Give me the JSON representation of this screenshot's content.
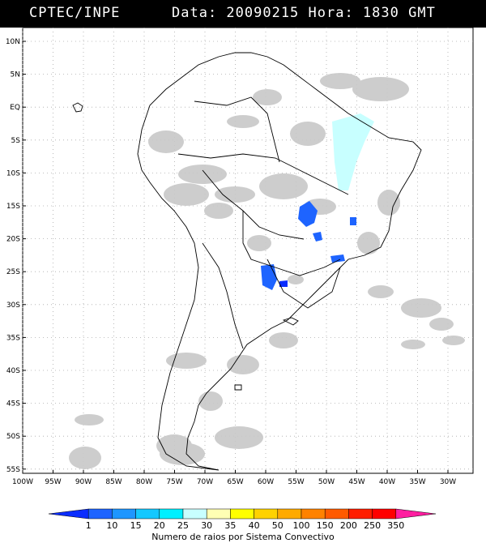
{
  "header": {
    "source": "CPTEC/INPE",
    "datetime": "Data: 20090215 Hora: 1830 GMT"
  },
  "map": {
    "lat_labels": [
      "10N",
      "5N",
      "EQ",
      "5S",
      "10S",
      "15S",
      "20S",
      "25S",
      "30S",
      "35S",
      "40S",
      "45S",
      "50S",
      "55S"
    ],
    "lon_labels": [
      "100W",
      "95W",
      "90W",
      "85W",
      "80W",
      "75W",
      "70W",
      "65W",
      "60W",
      "55W",
      "50W",
      "45W",
      "40W",
      "35W",
      "30W"
    ],
    "cloud_color": "#c8c8c8",
    "land_outline_color": "#000000"
  },
  "legend": {
    "title": "Numero de raios por Sistema Convectivo",
    "labels": [
      "1",
      "10",
      "15",
      "20",
      "25",
      "30",
      "35",
      "40",
      "50",
      "100",
      "150",
      "200",
      "250",
      "350"
    ],
    "colors": [
      "#0a2dff",
      "#1e64ff",
      "#1e96ff",
      "#14c8ff",
      "#00f0ff",
      "#c8ffff",
      "#ffffb4",
      "#ffff00",
      "#ffd200",
      "#ffaa00",
      "#ff8200",
      "#ff5a00",
      "#ff1e00",
      "#ff0000",
      "#ff1ea0"
    ]
  }
}
